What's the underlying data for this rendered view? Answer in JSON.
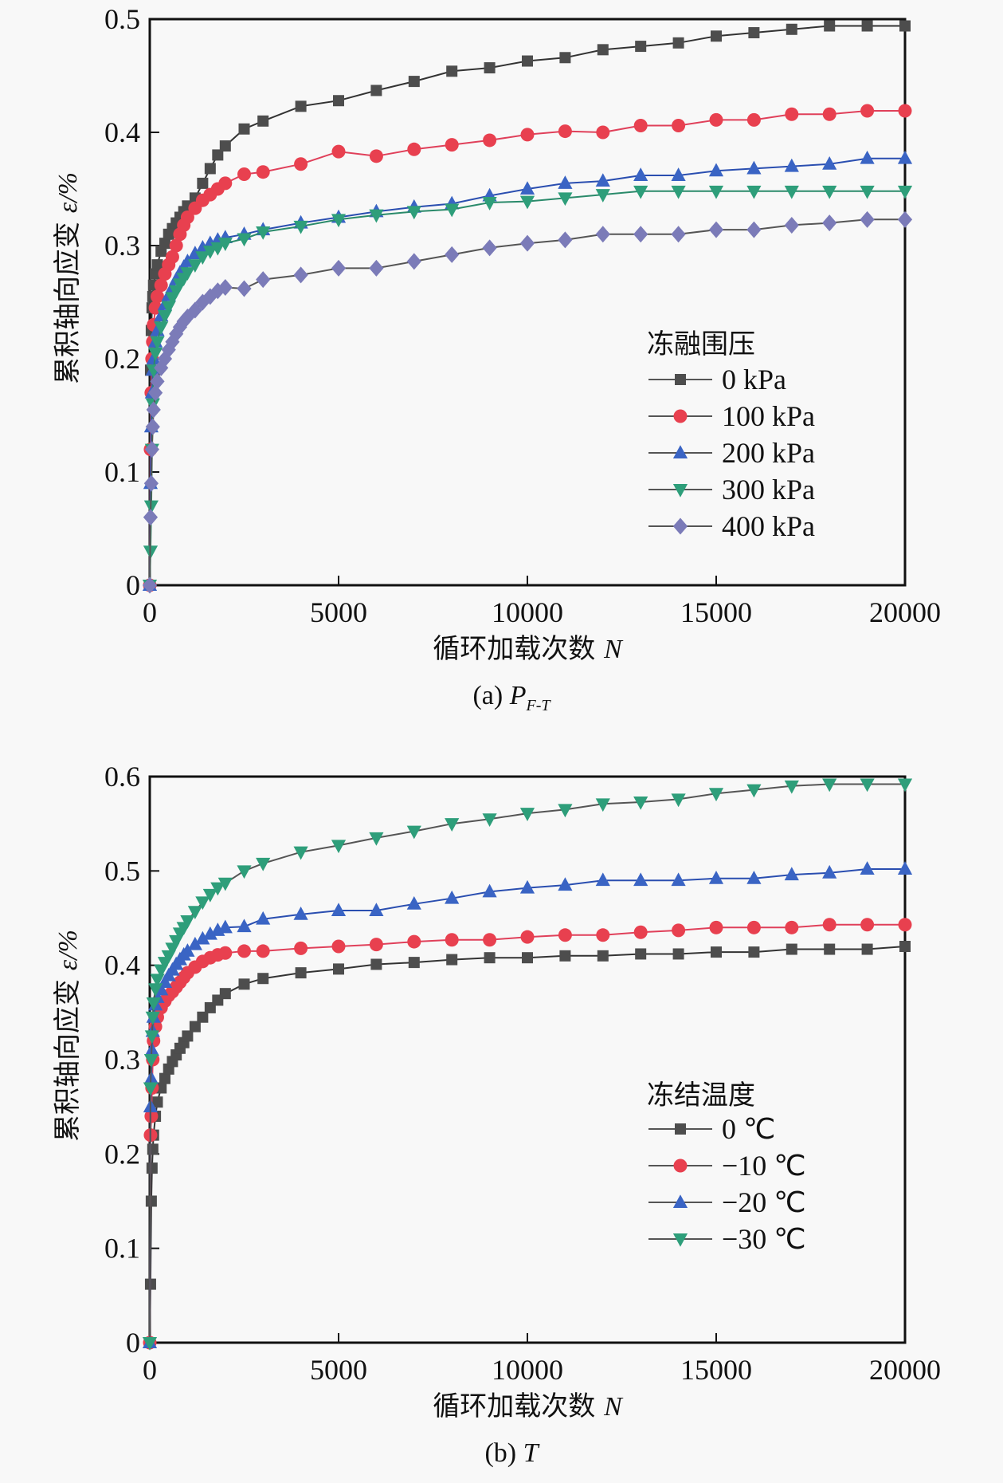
{
  "chart_data": [
    {
      "id": "a",
      "type": "line",
      "caption_prefix": "(a)",
      "caption_symbol": "P",
      "caption_subscript": "F-T",
      "xlabel_text": "循环加载次数",
      "xlabel_symbol": "N",
      "ylabel_text": "累积轴向应变",
      "ylabel_symbol": "ε/%",
      "xlim": [
        0,
        20000
      ],
      "ylim": [
        0,
        0.5
      ],
      "xticks": [
        0,
        5000,
        10000,
        15000,
        20000
      ],
      "yticks": [
        0,
        0.1,
        0.2,
        0.3,
        0.4,
        0.5
      ],
      "ytick_labels": [
        "0",
        "0.1",
        "0.2",
        "0.3",
        "0.4",
        "0.5"
      ],
      "legend_title": "冻融围压",
      "legend_position": "center-right",
      "x": [
        0,
        20,
        40,
        60,
        80,
        100,
        150,
        200,
        300,
        400,
        500,
        600,
        700,
        800,
        900,
        1000,
        1200,
        1400,
        1600,
        1800,
        2000,
        2500,
        3000,
        4000,
        5000,
        6000,
        7000,
        8000,
        9000,
        10000,
        11000,
        12000,
        13000,
        14000,
        15000,
        16000,
        17000,
        18000,
        19000,
        20000
      ],
      "series": [
        {
          "name": "0 kPa",
          "marker": "square",
          "color": "#4d4d4d",
          "line": "#333333",
          "values": [
            0,
            0.19,
            0.225,
            0.245,
            0.255,
            0.265,
            0.275,
            0.283,
            0.295,
            0.302,
            0.31,
            0.315,
            0.32,
            0.325,
            0.33,
            0.335,
            0.342,
            0.355,
            0.368,
            0.38,
            0.388,
            0.403,
            0.41,
            0.423,
            0.428,
            0.437,
            0.445,
            0.454,
            0.457,
            0.463,
            0.466,
            0.473,
            0.476,
            0.479,
            0.485,
            0.488,
            0.491,
            0.494,
            0.494,
            0.494
          ]
        },
        {
          "name": "100 kPa",
          "marker": "circle",
          "color": "#e8404f",
          "line": "#e0405a",
          "values": [
            0,
            0.12,
            0.17,
            0.2,
            0.215,
            0.23,
            0.245,
            0.255,
            0.265,
            0.275,
            0.283,
            0.29,
            0.3,
            0.31,
            0.318,
            0.325,
            0.333,
            0.34,
            0.345,
            0.35,
            0.355,
            0.363,
            0.365,
            0.372,
            0.383,
            0.379,
            0.385,
            0.389,
            0.393,
            0.398,
            0.401,
            0.4,
            0.406,
            0.406,
            0.411,
            0.411,
            0.416,
            0.416,
            0.419,
            0.419
          ]
        },
        {
          "name": "200 kPa",
          "marker": "triangle-up",
          "color": "#3a64c4",
          "line": "#2a4eb0",
          "values": [
            0,
            0.09,
            0.14,
            0.17,
            0.19,
            0.2,
            0.215,
            0.225,
            0.238,
            0.248,
            0.256,
            0.263,
            0.27,
            0.276,
            0.281,
            0.286,
            0.293,
            0.298,
            0.302,
            0.305,
            0.307,
            0.31,
            0.314,
            0.32,
            0.325,
            0.33,
            0.334,
            0.337,
            0.344,
            0.35,
            0.355,
            0.357,
            0.362,
            0.362,
            0.366,
            0.368,
            0.37,
            0.372,
            0.377,
            0.377
          ]
        },
        {
          "name": "300 kPa",
          "marker": "triangle-down",
          "color": "#2e9e7a",
          "line": "#2a8a6a",
          "values": [
            0,
            0.03,
            0.07,
            0.12,
            0.16,
            0.19,
            0.205,
            0.215,
            0.228,
            0.238,
            0.246,
            0.254,
            0.26,
            0.266,
            0.271,
            0.276,
            0.283,
            0.29,
            0.295,
            0.298,
            0.302,
            0.306,
            0.312,
            0.317,
            0.323,
            0.327,
            0.33,
            0.332,
            0.338,
            0.339,
            0.342,
            0.345,
            0.348,
            0.348,
            0.348,
            0.348,
            0.348,
            0.348,
            0.348,
            0.348
          ]
        },
        {
          "name": "400 kPa",
          "marker": "diamond",
          "color": "#7b7bb8",
          "line": "#555555",
          "values": [
            0,
            0.06,
            0.09,
            0.12,
            0.14,
            0.155,
            0.17,
            0.18,
            0.192,
            0.2,
            0.208,
            0.215,
            0.222,
            0.228,
            0.233,
            0.237,
            0.243,
            0.25,
            0.255,
            0.26,
            0.263,
            0.262,
            0.27,
            0.274,
            0.28,
            0.28,
            0.286,
            0.292,
            0.298,
            0.302,
            0.305,
            0.31,
            0.31,
            0.31,
            0.314,
            0.314,
            0.318,
            0.32,
            0.323,
            0.323
          ]
        }
      ]
    },
    {
      "id": "b",
      "type": "line",
      "caption_prefix": "(b)",
      "caption_symbol": "T",
      "caption_subscript": "",
      "xlabel_text": "循环加载次数",
      "xlabel_symbol": "N",
      "ylabel_text": "累积轴向应变",
      "ylabel_symbol": "ε/%",
      "xlim": [
        0,
        20000
      ],
      "ylim": [
        0,
        0.6
      ],
      "xticks": [
        0,
        5000,
        10000,
        15000,
        20000
      ],
      "yticks": [
        0,
        0.1,
        0.2,
        0.3,
        0.4,
        0.5,
        0.6
      ],
      "ytick_labels": [
        "0",
        "0.1",
        "0.2",
        "0.3",
        "0.4",
        "0.5",
        "0.6"
      ],
      "legend_title": "冻结温度",
      "legend_position": "lower-right",
      "x": [
        0,
        20,
        40,
        60,
        80,
        100,
        150,
        200,
        300,
        400,
        500,
        600,
        700,
        800,
        900,
        1000,
        1200,
        1400,
        1600,
        1800,
        2000,
        2500,
        3000,
        4000,
        5000,
        6000,
        7000,
        8000,
        9000,
        10000,
        11000,
        12000,
        13000,
        14000,
        15000,
        16000,
        17000,
        18000,
        19000,
        20000
      ],
      "series": [
        {
          "name": "0 ℃",
          "marker": "square",
          "color": "#4d4d4d",
          "line": "#333333",
          "values": [
            0,
            0.062,
            0.15,
            0.185,
            0.205,
            0.22,
            0.24,
            0.255,
            0.27,
            0.28,
            0.29,
            0.298,
            0.305,
            0.312,
            0.318,
            0.325,
            0.335,
            0.345,
            0.355,
            0.363,
            0.37,
            0.38,
            0.386,
            0.392,
            0.396,
            0.401,
            0.403,
            0.406,
            0.408,
            0.408,
            0.41,
            0.41,
            0.412,
            0.412,
            0.414,
            0.414,
            0.417,
            0.417,
            0.417,
            0.42
          ]
        },
        {
          "name": "−10 ℃",
          "marker": "circle",
          "color": "#e8404f",
          "line": "#e0405a",
          "values": [
            0,
            0.22,
            0.24,
            0.27,
            0.3,
            0.32,
            0.335,
            0.345,
            0.355,
            0.362,
            0.368,
            0.372,
            0.377,
            0.382,
            0.387,
            0.392,
            0.398,
            0.404,
            0.408,
            0.411,
            0.413,
            0.415,
            0.415,
            0.418,
            0.42,
            0.422,
            0.425,
            0.427,
            0.427,
            0.43,
            0.432,
            0.432,
            0.435,
            0.437,
            0.44,
            0.44,
            0.44,
            0.443,
            0.443,
            0.443
          ]
        },
        {
          "name": "−20 ℃",
          "marker": "triangle-up",
          "color": "#3a64c4",
          "line": "#2a4eb0",
          "values": [
            0,
            0.25,
            0.28,
            0.31,
            0.33,
            0.345,
            0.358,
            0.366,
            0.374,
            0.382,
            0.389,
            0.395,
            0.401,
            0.406,
            0.411,
            0.415,
            0.422,
            0.428,
            0.433,
            0.437,
            0.44,
            0.441,
            0.449,
            0.454,
            0.458,
            0.458,
            0.465,
            0.471,
            0.478,
            0.482,
            0.485,
            0.49,
            0.49,
            0.49,
            0.492,
            0.492,
            0.496,
            0.498,
            0.502,
            0.502
          ]
        },
        {
          "name": "−30 ℃",
          "marker": "triangle-down",
          "color": "#2e9e7a",
          "line": "#555555",
          "values": [
            0,
            0.27,
            0.3,
            0.325,
            0.345,
            0.36,
            0.375,
            0.385,
            0.395,
            0.403,
            0.41,
            0.418,
            0.426,
            0.434,
            0.44,
            0.447,
            0.457,
            0.467,
            0.475,
            0.482,
            0.487,
            0.5,
            0.508,
            0.52,
            0.527,
            0.535,
            0.542,
            0.55,
            0.555,
            0.561,
            0.565,
            0.571,
            0.573,
            0.576,
            0.582,
            0.586,
            0.59,
            0.592,
            0.592,
            0.592
          ]
        }
      ]
    }
  ]
}
